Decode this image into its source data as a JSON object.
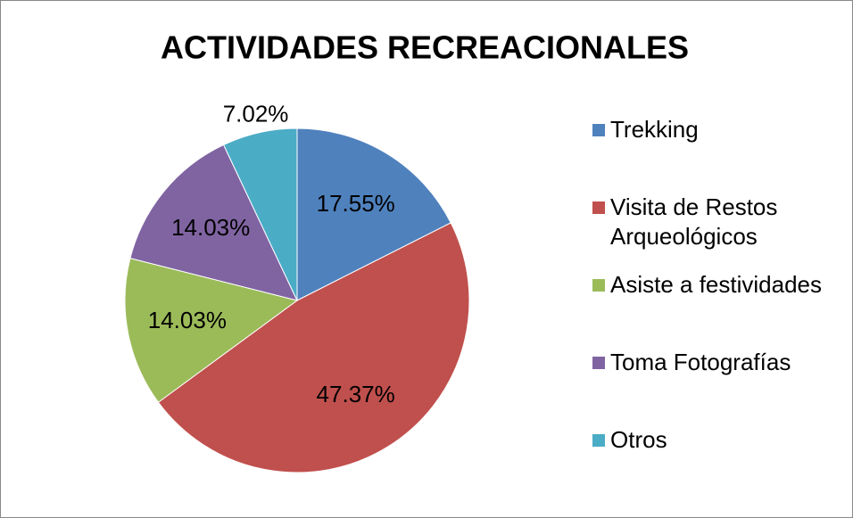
{
  "chart_data": {
    "type": "pie",
    "title": "ACTIVIDADES RECREACIONALES",
    "categories": [
      "Trekking",
      "Visita de Restos Arqueológicos",
      "Asiste a festividades",
      "Toma Fotografías",
      "Otros"
    ],
    "values": [
      17.55,
      47.37,
      14.03,
      14.03,
      7.02
    ],
    "value_labels": [
      "17.55%",
      "47.37%",
      "14.03%",
      "14.03%",
      "7.02%"
    ],
    "colors": [
      "#4f81bd",
      "#c0504d",
      "#9bbb59",
      "#8064a2",
      "#4bacc6"
    ],
    "legend": "right"
  }
}
